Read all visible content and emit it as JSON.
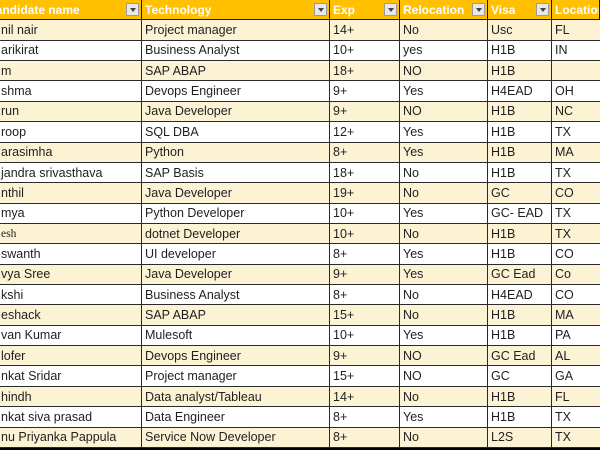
{
  "table": {
    "headers": [
      {
        "label": "Candidate name",
        "filter": true
      },
      {
        "label": "Technology",
        "filter": true
      },
      {
        "label": "Exp",
        "filter": true
      },
      {
        "label": "Relocation",
        "filter": true
      },
      {
        "label": "Visa",
        "filter": true
      },
      {
        "label": "Location",
        "filter": false
      }
    ],
    "rows": [
      {
        "name": "nil nair",
        "technology": "Project manager",
        "exp": "14+",
        "relocation": "No",
        "visa": "Usc",
        "location": "FL"
      },
      {
        "name": "arikirat",
        "technology": "Business Analyst",
        "exp": "10+",
        "relocation": "yes",
        "visa": "H1B",
        "location": "IN"
      },
      {
        "name": "m",
        "technology": "SAP ABAP",
        "exp": "18+",
        "relocation": "NO",
        "visa": "H1B",
        "location": ""
      },
      {
        "name": "shma",
        "technology": "Devops Engineer",
        "exp": "9+",
        "relocation": "Yes",
        "visa": "H4EAD",
        "location": "OH"
      },
      {
        "name": "run",
        "technology": "Java Developer",
        "exp": "9+",
        "relocation": "NO",
        "visa": "H1B",
        "location": "NC"
      },
      {
        "name": "roop",
        "technology": "SQL DBA",
        "exp": "12+",
        "relocation": "Yes",
        "visa": "H1B",
        "location": "TX"
      },
      {
        "name": "arasimha",
        "technology": "Python",
        "exp": "8+",
        "relocation": "Yes",
        "visa": "H1B",
        "location": "MA"
      },
      {
        "name": "jandra srivasthava",
        "technology": "SAP Basis",
        "exp": "18+",
        "relocation": "No",
        "visa": "H1B",
        "location": "TX"
      },
      {
        "name": "nthil",
        "technology": "Java Developer",
        "exp": "19+",
        "relocation": "No",
        "visa": "GC",
        "location": "CO"
      },
      {
        "name": "mya",
        "technology": "Python Developer",
        "exp": "10+",
        "relocation": "Yes",
        "visa": "GC- EAD",
        "location": "TX"
      },
      {
        "name": "esh",
        "name_serif": true,
        "technology": "dotnet Developer",
        "exp": "10+",
        "relocation": "No",
        "visa": "H1B",
        "location": "TX"
      },
      {
        "name": "swanth",
        "technology": "UI developer",
        "exp": "8+",
        "relocation": "Yes",
        "visa": "H1B",
        "location": "CO"
      },
      {
        "name": "vya Sree",
        "technology": "Java Developer",
        "exp": "9+",
        "relocation": "Yes",
        "visa": "GC Ead",
        "location": "Co"
      },
      {
        "name": "kshi",
        "technology": "Business Analyst",
        "exp": "8+",
        "relocation": "No",
        "visa": "H4EAD",
        "location": "CO"
      },
      {
        "name": "eshack",
        "technology": "SAP ABAP",
        "exp": "15+",
        "relocation": "No",
        "visa": "H1B",
        "location": "MA"
      },
      {
        "name": "van Kumar",
        "technology": "Mulesoft",
        "exp": "10+",
        "relocation": "Yes",
        "visa": "H1B",
        "location": "PA"
      },
      {
        "name": "lofer",
        "technology": "Devops Engineer",
        "exp": "9+",
        "relocation": "NO",
        "visa": "GC Ead",
        "location": "AL"
      },
      {
        "name": "nkat Sridar",
        "technology": "Project manager",
        "exp": "15+",
        "relocation": "NO",
        "visa": "GC",
        "location": "GA"
      },
      {
        "name": "hindh",
        "technology": "Data analyst/Tableau",
        "exp": "14+",
        "relocation": "No",
        "visa": "H1B",
        "location": "FL"
      },
      {
        "name": "nkat siva prasad",
        "technology": "Data Engineer",
        "exp": "8+",
        "relocation": "Yes",
        "visa": "H1B",
        "location": "TX"
      },
      {
        "name": "nu Priyanka Pappula",
        "technology": "Service Now Developer",
        "exp": "8+",
        "relocation": "No",
        "visa": "L2S",
        "location": "TX"
      }
    ]
  },
  "colors": {
    "header_bg": "#FFC000",
    "header_text": "#FFFFFF",
    "row_alt_bg": "#FCF2D4",
    "row_bg": "#FFFFFF",
    "border": "#2a2a2a",
    "cell_text": "#1F1F1F"
  },
  "icons": {
    "filter_dropdown": "triangle-down"
  }
}
